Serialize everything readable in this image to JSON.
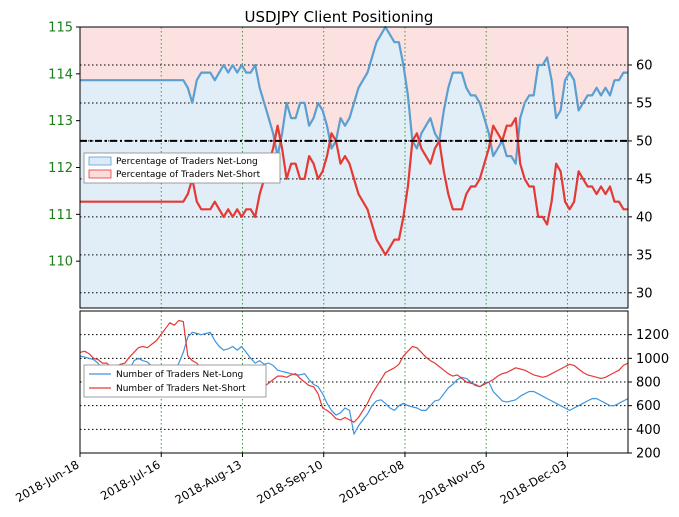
{
  "chart_data": [
    {
      "type": "line",
      "title": "USDJPY Client Positioning",
      "x_tick_labels": [
        "2018-Jun-18",
        "2018-Jul-16",
        "2018-Aug-13",
        "2018-Sep-10",
        "2018-Oct-08",
        "2018-Nov-05",
        "2018-Dec-03"
      ],
      "price_axis": {
        "ylim": [
          109,
          115
        ],
        "ticks": [
          "110",
          "111",
          "112",
          "113",
          "114",
          "115"
        ],
        "color": "#1a7f1a"
      },
      "pct_axis": {
        "ylim": [
          28,
          65
        ],
        "ticks": [
          "30",
          "35",
          "40",
          "45",
          "50",
          "55",
          "60"
        ],
        "reference_line": 50
      },
      "grid": true,
      "legend_position": "upper-left",
      "series": [
        {
          "name": "Percentage of Traders Net-Long",
          "color": "#5b9fd0",
          "fill": "#dcebf7",
          "values": [
            58,
            58,
            58,
            58,
            58,
            58,
            58,
            58,
            58,
            58,
            58,
            58,
            58,
            58,
            58,
            58,
            58,
            58,
            58,
            58,
            58,
            58,
            58,
            58,
            57,
            55,
            58,
            59,
            59,
            59,
            58,
            59,
            60,
            59,
            60,
            59,
            60,
            59,
            59,
            60,
            57,
            55,
            53,
            51,
            48,
            51,
            55,
            53,
            53,
            55,
            55,
            52,
            53,
            55,
            54,
            52,
            49,
            50,
            53,
            52,
            53,
            55,
            57,
            58,
            59,
            61,
            63,
            64,
            65,
            64,
            63,
            63,
            60,
            56,
            50,
            49,
            51,
            52,
            53,
            51,
            50,
            54,
            57,
            59,
            59,
            59,
            57,
            56,
            56,
            55,
            53,
            51,
            48,
            49,
            50,
            48,
            48,
            47,
            53,
            55,
            56,
            56,
            60,
            60,
            61,
            58,
            53,
            54,
            58,
            59,
            58,
            54,
            55,
            56,
            56,
            57,
            56,
            57,
            56,
            58,
            58,
            59,
            59
          ]
        },
        {
          "name": "Percentage of Traders Net-Short",
          "color": "#e53935",
          "fill": "#fbdcdc",
          "values": [
            42,
            42,
            42,
            42,
            42,
            42,
            42,
            42,
            42,
            42,
            42,
            42,
            42,
            42,
            42,
            42,
            42,
            42,
            42,
            42,
            42,
            42,
            42,
            42,
            43,
            45,
            42,
            41,
            41,
            41,
            42,
            41,
            40,
            41,
            40,
            41,
            40,
            41,
            41,
            40,
            43,
            45,
            47,
            49,
            52,
            49,
            45,
            47,
            47,
            45,
            45,
            48,
            47,
            45,
            46,
            48,
            51,
            50,
            47,
            48,
            47,
            45,
            43,
            42,
            41,
            39,
            37,
            36,
            35,
            36,
            37,
            37,
            40,
            44,
            50,
            51,
            49,
            48,
            47,
            49,
            50,
            46,
            43,
            41,
            41,
            41,
            43,
            44,
            44,
            45,
            47,
            49,
            52,
            51,
            50,
            52,
            52,
            53,
            47,
            45,
            44,
            44,
            40,
            40,
            39,
            42,
            47,
            46,
            42,
            41,
            42,
            46,
            45,
            44,
            44,
            43,
            44,
            43,
            44,
            42,
            42,
            41,
            41
          ]
        }
      ]
    },
    {
      "type": "line",
      "ylim": [
        200,
        1400
      ],
      "y_ticks": [
        "200",
        "400",
        "600",
        "800",
        "1000",
        "1200"
      ],
      "grid": true,
      "legend_position": "upper-left",
      "series": [
        {
          "name": "Number of Traders Net-Long",
          "color": "#3d95e0",
          "values": [
            1020,
            1010,
            1000,
            990,
            960,
            900,
            850,
            850,
            800,
            790,
            800,
            900,
            980,
            1000,
            980,
            970,
            930,
            910,
            880,
            850,
            840,
            880,
            960,
            1050,
            1180,
            1220,
            1210,
            1200,
            1210,
            1220,
            1150,
            1100,
            1070,
            1080,
            1100,
            1070,
            1100,
            1050,
            1000,
            960,
            980,
            950,
            960,
            940,
            900,
            890,
            880,
            870,
            860,
            860,
            870,
            820,
            780,
            760,
            700,
            620,
            560,
            520,
            540,
            580,
            560,
            360,
            430,
            480,
            530,
            600,
            640,
            650,
            620,
            580,
            560,
            600,
            620,
            600,
            590,
            580,
            560,
            560,
            600,
            640,
            650,
            700,
            750,
            780,
            820,
            840,
            830,
            800,
            770,
            760,
            790,
            800,
            720,
            680,
            640,
            630,
            640,
            650,
            680,
            700,
            720,
            720,
            700,
            680,
            660,
            640,
            620,
            600,
            580,
            560,
            580,
            600,
            620,
            640,
            660,
            660,
            640,
            620,
            600,
            600,
            620,
            640,
            660
          ]
        },
        {
          "name": "Number of Traders Net-Short",
          "color": "#e53935",
          "values": [
            1050,
            1060,
            1040,
            1000,
            990,
            960,
            960,
            920,
            930,
            950,
            960,
            1010,
            1050,
            1090,
            1100,
            1090,
            1120,
            1150,
            1200,
            1250,
            1300,
            1280,
            1320,
            1310,
            1020,
            980,
            960,
            910,
            870,
            850,
            830,
            860,
            880,
            840,
            830,
            850,
            900,
            930,
            880,
            820,
            800,
            760,
            790,
            820,
            850,
            850,
            840,
            860,
            870,
            830,
            800,
            770,
            760,
            700,
            580,
            560,
            530,
            490,
            480,
            500,
            480,
            460,
            500,
            560,
            620,
            700,
            760,
            820,
            880,
            900,
            920,
            950,
            1020,
            1060,
            1100,
            1090,
            1050,
            1010,
            980,
            960,
            930,
            900,
            870,
            850,
            860,
            830,
            800,
            790,
            780,
            760,
            780,
            800,
            820,
            850,
            870,
            880,
            900,
            920,
            910,
            900,
            880,
            860,
            850,
            840,
            850,
            870,
            890,
            910,
            930,
            950,
            940,
            910,
            880,
            860,
            850,
            840,
            830,
            840,
            860,
            880,
            900,
            940,
            960
          ]
        }
      ]
    }
  ]
}
